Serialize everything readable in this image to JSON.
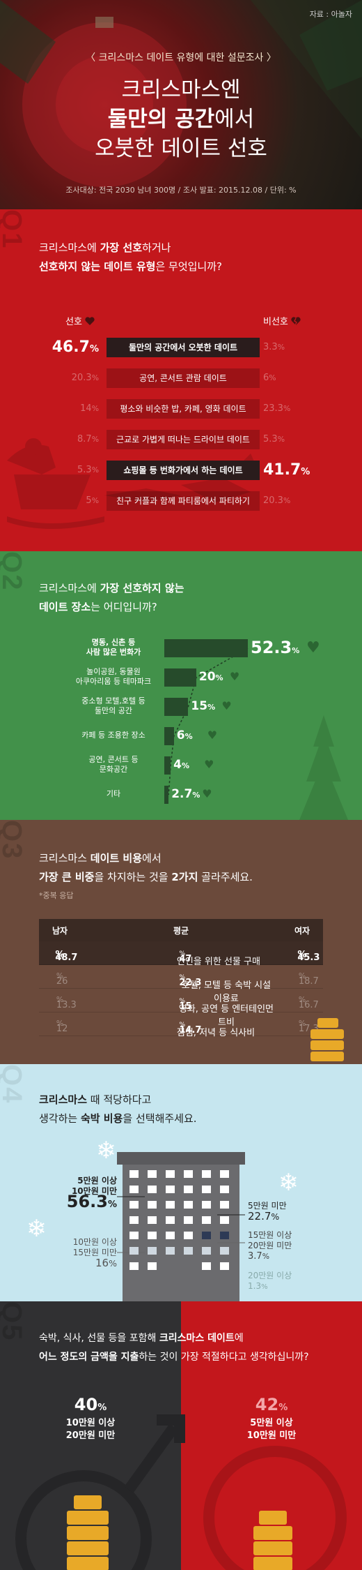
{
  "header": {
    "source": "자료 : 아놀자",
    "subtitle": "〈 크리스마스 데이트 유형에 대한 설문조사 〉",
    "title_line1": "크리스마스엔",
    "title_line2_bold": "둘만의 공간",
    "title_line2_rest": "에서",
    "title_line3": "오붓한 데이트 선호",
    "meta": "조사대상: 전국 2030 남녀 300명 / 조사 발표: 2015.12.08 / 단위: %"
  },
  "q1": {
    "num": "Q1",
    "text_l1_a": "크리스마스에 ",
    "text_l1_b": "가장 선호",
    "text_l1_c": "하거나",
    "text_l2_a": "선호하지 않는 데이트 유형",
    "text_l2_b": "은 무엇입니까?",
    "prefer_label": "선호",
    "nonprefer_label": "비선호",
    "rows": [
      {
        "label": "둘만의 공간에서 오붓한 데이트",
        "prefer": "46.7",
        "nonprefer": "3.3"
      },
      {
        "label": "공연, 콘서트 관람 데이트",
        "prefer": "20.3",
        "nonprefer": "6"
      },
      {
        "label": "평소와 비슷한 밥, 카페, 영화 데이트",
        "prefer": "14",
        "nonprefer": "23.3"
      },
      {
        "label": "근교로 가볍게 떠나는 드라이브 데이트",
        "prefer": "8.7",
        "nonprefer": "5.3"
      },
      {
        "label": "쇼핑몰 등 번화가에서 하는 데이트",
        "prefer": "5.3",
        "nonprefer": "41.7"
      },
      {
        "label": "친구 커플과 함께 파티룸에서 파티하기",
        "prefer": "5",
        "nonprefer": "20.3"
      }
    ],
    "pct": "%"
  },
  "q2": {
    "num": "Q2",
    "text_l1_a": "크리스마스에 ",
    "text_l1_b": "가장 선호하지 않는",
    "text_l2_a": "데이트 장소",
    "text_l2_b": "는 어디입니까?",
    "rows": [
      {
        "label1": "명동, 신촌 등",
        "label2": "사람 많은 번화가",
        "value": "52.3",
        "v": 52.3
      },
      {
        "label1": "놀이공원, 동물원",
        "label2": "아쿠아리움 등 테마파크",
        "value": "20",
        "v": 20
      },
      {
        "label1": "중소형 모텔,호텔 등",
        "label2": "둘만의 공간",
        "value": "15",
        "v": 15
      },
      {
        "label1": "카페 등 조용한 장소",
        "label2": "",
        "value": "6",
        "v": 6
      },
      {
        "label1": "공연, 콘서트 등",
        "label2": "문화공간",
        "value": "4",
        "v": 4
      },
      {
        "label1": "기타",
        "label2": "",
        "value": "2.7",
        "v": 2.7
      }
    ],
    "pct": "%"
  },
  "q3": {
    "num": "Q3",
    "text_l1_a": "크리스마스 ",
    "text_l1_b": "데이트 비용",
    "text_l1_c": "에서",
    "text_l2_a": "가장 큰 비중",
    "text_l2_b": "을 차지하는 것을 ",
    "text_l2_c": "2가지",
    "text_l2_d": " 골라주세요.",
    "note": "*중복 응답",
    "head_male": "남자",
    "head_avg": "평균",
    "head_female": "여자",
    "rows": [
      {
        "male": "48.7",
        "item": "연인을 위한 선물 구매",
        "avg": "47",
        "female": "45.3"
      },
      {
        "male": "26",
        "item": "호텔, 모텔 등 숙박 시설 이용료",
        "avg": "22.3",
        "female": "18.7"
      },
      {
        "male": "13.3",
        "item": "영화, 공연 등 엔터테인먼트비",
        "avg": "15",
        "female": "16.7"
      },
      {
        "male": "12",
        "item": "점심, 저녁 등 식사비",
        "avg": "14.7",
        "female": "17.3"
      }
    ],
    "pct": "%"
  },
  "q4": {
    "num": "Q4",
    "text_l1_a": "크리스마스",
    "text_l1_b": " 때 적당하다고",
    "text_l2_a": "생각하는 ",
    "text_l2_b": "숙박 비용",
    "text_l2_c": "을 선택해주세요.",
    "a_label1": "5만원 이상",
    "a_label2": "10만원 미만",
    "a_value": "56.3",
    "b_label1": "10만원 이상",
    "b_label2": "15만원 미만",
    "b_value": "16",
    "c_label": "5만원 미만",
    "c_value": "22.7",
    "d_label1": "15만원 이상",
    "d_label2": "20만원 미만",
    "d_value": "3.7",
    "e_label": "20만원 이상",
    "e_value": "1.3",
    "pct": "%"
  },
  "q5": {
    "num": "Q5",
    "text_l1_a": "숙박, 식사, 선물 등을 포함해 ",
    "text_l1_b": "크리스마스 데이트",
    "text_l1_c": "에",
    "text_l2_a": "어느 정도의 금액을 지출",
    "text_l2_b": "하는 것이 가장 적절하다고 생각하십니까?",
    "male_value": "40",
    "male_label1": "10만원 이상",
    "male_label2": "20만원 미만",
    "female_value": "42",
    "female_label1": "5만원 이상",
    "female_label2": "10만원 미만",
    "pct": "%"
  },
  "colors": {
    "red": "#c3171c",
    "green": "#42914a",
    "brown": "#6b4a3b",
    "sky": "#c6e6ef",
    "dark": "#303032",
    "gold": "#e8a928"
  }
}
